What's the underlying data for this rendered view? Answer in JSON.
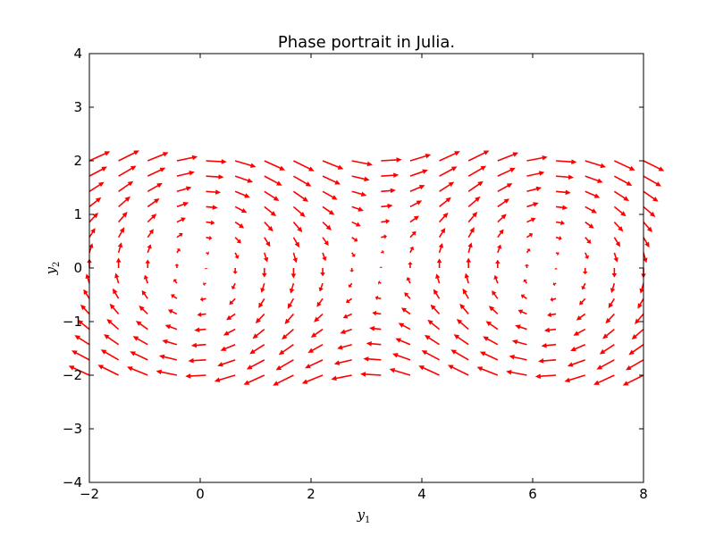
{
  "chart_data": {
    "type": "quiver",
    "title": "Phase portrait in Julia.",
    "xlabel": {
      "symbol": "y",
      "subscript": "1"
    },
    "ylabel": {
      "symbol": "y",
      "subscript": "2"
    },
    "xlim": [
      -2,
      8
    ],
    "ylim": [
      -4,
      4
    ],
    "xticks": [
      -2,
      0,
      2,
      4,
      6,
      8
    ],
    "yticks": [
      -4,
      -3,
      -2,
      -1,
      0,
      1,
      2,
      3,
      4
    ],
    "xtick_labels": [
      "−2",
      "0",
      "2",
      "4",
      "6",
      "8"
    ],
    "ytick_labels": [
      "−4",
      "−3",
      "−2",
      "−1",
      "0",
      "1",
      "2",
      "3",
      "4"
    ],
    "grid": false,
    "arrow_color": "#ff0000",
    "field": {
      "system": "dy1/dt = y2, dy2/dt = -sin(y1)",
      "x_grid": {
        "start": -2,
        "stop": 8,
        "count": 20
      },
      "y_grid": {
        "start": -2,
        "stop": 2,
        "count": 15
      }
    }
  }
}
